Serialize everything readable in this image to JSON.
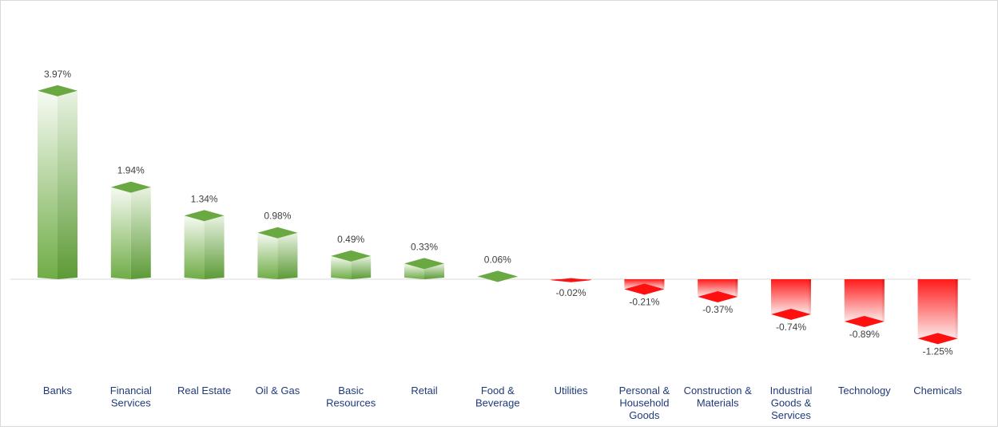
{
  "chart_data": {
    "type": "bar",
    "title": "",
    "xlabel": "",
    "ylabel": "",
    "ylim": [
      -1.5,
      4.5
    ],
    "unit": "%",
    "categories": [
      [
        "Banks"
      ],
      [
        "Financial",
        "Services"
      ],
      [
        "Real Estate"
      ],
      [
        "Oil & Gas"
      ],
      [
        "Basic",
        "Resources"
      ],
      [
        "Retail"
      ],
      [
        "Food &",
        "Beverage"
      ],
      [
        "Utilities"
      ],
      [
        "Personal &",
        "Household",
        "Goods"
      ],
      [
        "Construction &",
        "Materials"
      ],
      [
        "Industrial",
        "Goods &",
        "Services"
      ],
      [
        "Technology"
      ],
      [
        "Chemicals"
      ]
    ],
    "values": [
      3.97,
      1.94,
      1.34,
      0.98,
      0.49,
      0.33,
      0.06,
      -0.02,
      -0.21,
      -0.37,
      -0.74,
      -0.89,
      -1.25
    ],
    "value_labels": [
      "3.97%",
      "1.94%",
      "1.34%",
      "0.98%",
      "0.49%",
      "0.33%",
      "0.06%",
      "-0.02%",
      "-0.21%",
      "-0.37%",
      "-0.74%",
      "-0.89%",
      "-1.25%"
    ],
    "colors": {
      "positive": "#70ad47",
      "negative": "#ff0000"
    },
    "grid": false,
    "legend": "none"
  }
}
